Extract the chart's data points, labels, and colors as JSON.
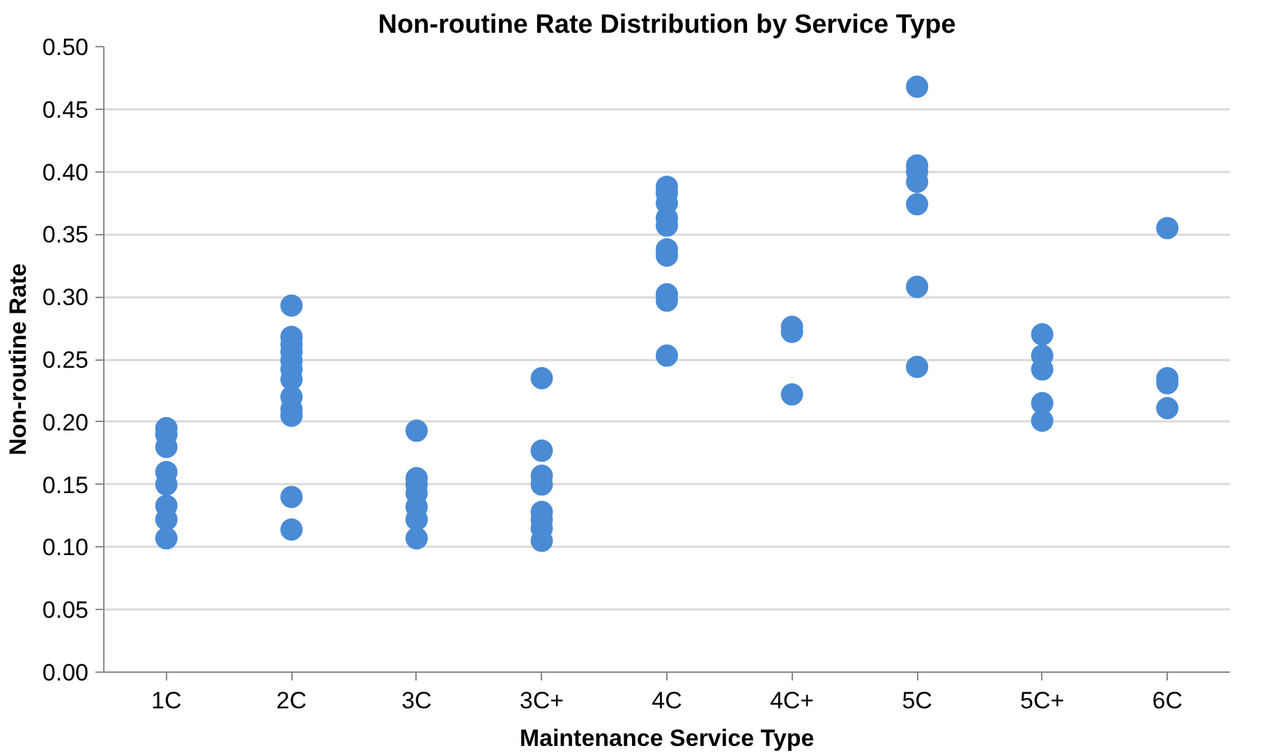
{
  "chart_data": {
    "type": "scatter",
    "title": "Non-routine Rate Distribution by Service Type",
    "xlabel": "Maintenance Service Type",
    "ylabel": "Non-routine Rate",
    "categories": [
      "1C",
      "2C",
      "3C",
      "3C+",
      "4C",
      "4C+",
      "5C",
      "5C+",
      "6C"
    ],
    "ylim": [
      0,
      0.5
    ],
    "yticks": [
      {
        "value": 0,
        "label": "0.00"
      },
      {
        "value": 0.05,
        "label": "0.05"
      },
      {
        "value": 0.1,
        "label": "0.10"
      },
      {
        "value": 0.15,
        "label": "0.15"
      },
      {
        "value": 0.2,
        "label": "0.20"
      },
      {
        "value": 0.25,
        "label": "0.25"
      },
      {
        "value": 0.3,
        "label": "0.30"
      },
      {
        "value": 0.35,
        "label": "0.35"
      },
      {
        "value": 0.4,
        "label": "0.40"
      },
      {
        "value": 0.45,
        "label": "0.45"
      },
      {
        "value": 0.5,
        "label": "0.50"
      }
    ],
    "grid": "y",
    "marker": "circle",
    "series": [
      {
        "color": "#4a8bd6",
        "x": [
          "1C",
          "1C",
          "1C",
          "1C",
          "1C",
          "1C",
          "1C",
          "1C",
          "2C",
          "2C",
          "2C",
          "2C",
          "2C",
          "2C",
          "2C",
          "2C",
          "2C",
          "2C",
          "2C",
          "2C",
          "3C",
          "3C",
          "3C",
          "3C",
          "3C",
          "3C",
          "3C",
          "3C+",
          "3C+",
          "3C+",
          "3C+",
          "3C+",
          "3C+",
          "3C+",
          "3C+",
          "4C",
          "4C",
          "4C",
          "4C",
          "4C",
          "4C",
          "4C",
          "4C",
          "4C",
          "4C",
          "4C+",
          "4C+",
          "4C+",
          "5C",
          "5C",
          "5C",
          "5C",
          "5C",
          "5C",
          "5C",
          "5C+",
          "5C+",
          "5C+",
          "5C+",
          "5C+",
          "6C",
          "6C",
          "6C",
          "6C"
        ],
        "values": [
          0.195,
          0.19,
          0.18,
          0.16,
          0.15,
          0.133,
          0.122,
          0.107,
          0.293,
          0.268,
          0.262,
          0.256,
          0.249,
          0.242,
          0.234,
          0.22,
          0.21,
          0.205,
          0.14,
          0.114,
          0.193,
          0.155,
          0.15,
          0.143,
          0.132,
          0.122,
          0.107,
          0.235,
          0.177,
          0.157,
          0.15,
          0.128,
          0.122,
          0.115,
          0.105,
          0.388,
          0.383,
          0.375,
          0.363,
          0.357,
          0.338,
          0.333,
          0.302,
          0.297,
          0.253,
          0.276,
          0.272,
          0.222,
          0.468,
          0.405,
          0.4,
          0.392,
          0.374,
          0.308,
          0.244,
          0.27,
          0.253,
          0.242,
          0.215,
          0.201,
          0.355,
          0.235,
          0.231,
          0.211
        ]
      }
    ]
  }
}
